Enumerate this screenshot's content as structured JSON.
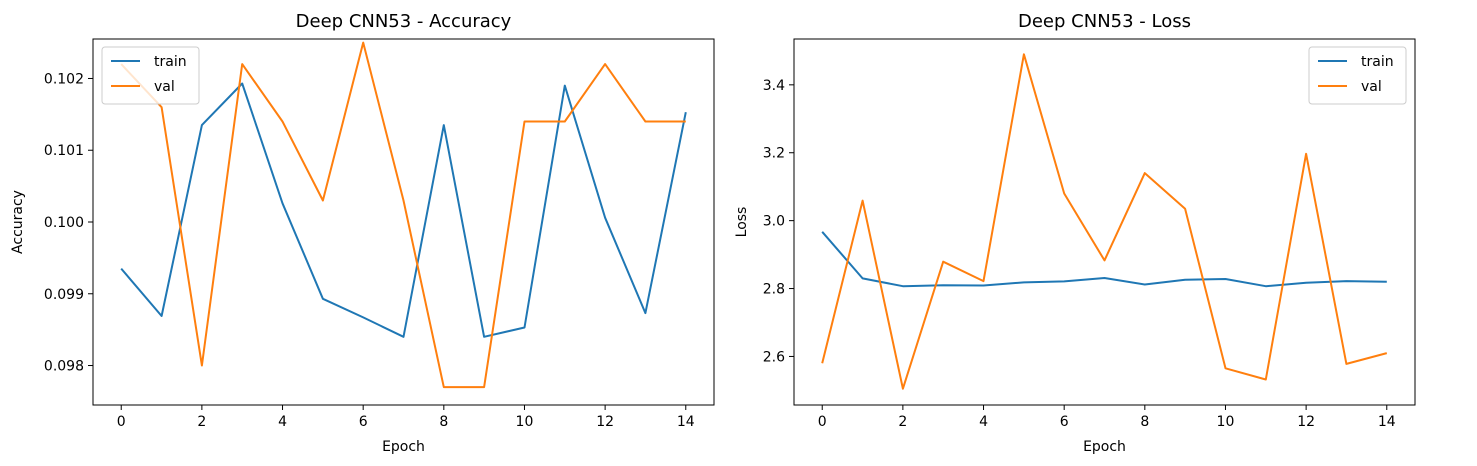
{
  "chart_data": [
    {
      "type": "line",
      "title": "Deep CNN53 - Accuracy",
      "xlabel": "Epoch",
      "ylabel": "Accuracy",
      "x": [
        0,
        1,
        2,
        3,
        4,
        5,
        6,
        7,
        8,
        9,
        10,
        11,
        12,
        13,
        14
      ],
      "xlim": [
        -0.7,
        14.7
      ],
      "ylim": [
        0.09745,
        0.10255
      ],
      "xticks": [
        0,
        2,
        4,
        6,
        8,
        10,
        12,
        14
      ],
      "yticks": [
        0.098,
        0.099,
        0.1,
        0.101,
        0.102
      ],
      "ytick_labels": [
        "0.098",
        "0.099",
        "0.100",
        "0.101",
        "0.102"
      ],
      "legend_position": "upper left",
      "grid": false,
      "series": [
        {
          "name": "train",
          "color": "#1f77b4",
          "values": [
            0.09935,
            0.09869,
            0.10135,
            0.10193,
            0.10026,
            0.09893,
            0.09867,
            0.0984,
            0.10135,
            0.0984,
            0.09853,
            0.1019,
            0.10006,
            0.09873,
            0.10153
          ]
        },
        {
          "name": "val",
          "color": "#ff7f0e",
          "values": [
            0.1022,
            0.1016,
            0.098,
            0.1022,
            0.1014,
            0.1003,
            0.1025,
            0.1003,
            0.0977,
            0.0977,
            0.1014,
            0.1014,
            0.1022,
            0.1014,
            0.1014
          ]
        }
      ]
    },
    {
      "type": "line",
      "title": "Deep CNN53 - Loss",
      "xlabel": "Epoch",
      "ylabel": "Loss",
      "x": [
        0,
        1,
        2,
        3,
        4,
        5,
        6,
        7,
        8,
        9,
        10,
        11,
        12,
        13,
        14
      ],
      "xlim": [
        -0.7,
        14.7
      ],
      "ylim": [
        2.457,
        3.535
      ],
      "xticks": [
        0,
        2,
        4,
        6,
        8,
        10,
        12,
        14
      ],
      "yticks": [
        2.6,
        2.8,
        3.0,
        3.2,
        3.4
      ],
      "ytick_labels": [
        "2.6",
        "2.8",
        "3.0",
        "3.2",
        "3.4"
      ],
      "legend_position": "upper right",
      "grid": false,
      "series": [
        {
          "name": "train",
          "color": "#1f77b4",
          "values": [
            2.967,
            2.83,
            2.807,
            2.81,
            2.809,
            2.818,
            2.821,
            2.831,
            2.812,
            2.826,
            2.828,
            2.807,
            2.817,
            2.822,
            2.82
          ]
        },
        {
          "name": "val",
          "color": "#ff7f0e",
          "values": [
            2.58,
            3.059,
            2.505,
            2.879,
            2.822,
            3.49,
            3.08,
            2.883,
            3.14,
            3.035,
            2.565,
            2.532,
            3.197,
            2.578,
            2.61
          ]
        }
      ]
    }
  ]
}
